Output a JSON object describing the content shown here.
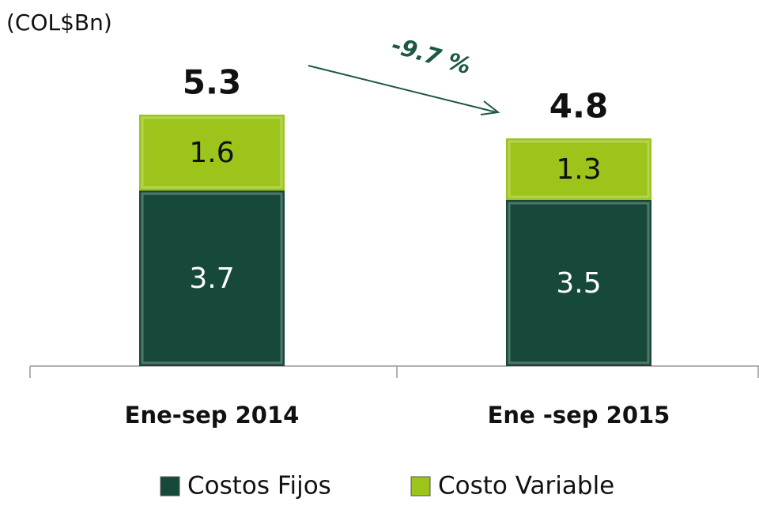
{
  "chart_data": {
    "type": "stacked_bar",
    "unit_label": "(COL$Bn)",
    "categories": [
      "Ene-sep 2014",
      "Ene -sep 2015"
    ],
    "series": [
      {
        "name": "Costos Fijos",
        "color": "#17493a",
        "values": [
          3.7,
          3.5
        ]
      },
      {
        "name": "Costo Variable",
        "color": "#9cc41b",
        "values": [
          1.6,
          1.3
        ]
      }
    ],
    "totals": [
      5.3,
      4.8
    ],
    "annotation": "-9.7 %",
    "annotation_color": "#1b5a40"
  }
}
